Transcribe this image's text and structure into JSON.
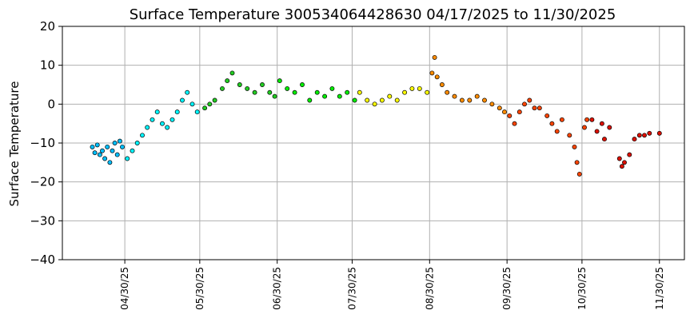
{
  "chart_data": {
    "type": "scatter",
    "title": "Surface Temperature 300534064428630  04/17/2025 to 11/30/2025",
    "xlabel": "",
    "ylabel": "Surface Temperature",
    "xlim": [
      "2025-04-05",
      "2025-12-10"
    ],
    "ylim": [
      -40,
      20
    ],
    "yticks": [
      -40,
      -30,
      -20,
      -10,
      0,
      10,
      20
    ],
    "xticks": [
      "04/30/25",
      "05/30/25",
      "06/30/25",
      "07/30/25",
      "08/30/25",
      "09/30/25",
      "10/30/25",
      "11/30/25"
    ],
    "xtick_dates": [
      "2025-04-30",
      "2025-05-30",
      "2025-06-30",
      "2025-07-30",
      "2025-08-30",
      "2025-09-30",
      "2025-10-30",
      "2025-11-30"
    ],
    "grid": true,
    "marker_edge_color": "#000000",
    "color_scheme": "rainbow by month: April blue, May cyan, June green, July lime, August yellow, September orange, October red-orange, November red",
    "series": [
      {
        "color": "#00bfff",
        "points": [
          [
            "2025-04-17",
            -11
          ],
          [
            "2025-04-18",
            -12.5
          ],
          [
            "2025-04-19",
            -10.5
          ],
          [
            "2025-04-20",
            -13
          ],
          [
            "2025-04-21",
            -12
          ],
          [
            "2025-04-22",
            -14
          ],
          [
            "2025-04-23",
            -11
          ],
          [
            "2025-04-24",
            -15
          ],
          [
            "2025-04-25",
            -12
          ],
          [
            "2025-04-26",
            -10
          ],
          [
            "2025-04-27",
            -13
          ],
          [
            "2025-04-28",
            -9.5
          ],
          [
            "2025-04-29",
            -11
          ]
        ]
      },
      {
        "color": "#00f5ff",
        "points": [
          [
            "2025-05-01",
            -14
          ],
          [
            "2025-05-03",
            -12
          ],
          [
            "2025-05-05",
            -10
          ],
          [
            "2025-05-07",
            -8
          ],
          [
            "2025-05-09",
            -6
          ],
          [
            "2025-05-11",
            -4
          ],
          [
            "2025-05-13",
            -2
          ],
          [
            "2025-05-15",
            -5
          ],
          [
            "2025-05-17",
            -6
          ],
          [
            "2025-05-19",
            -4
          ],
          [
            "2025-05-21",
            -2
          ],
          [
            "2025-05-23",
            1
          ],
          [
            "2025-05-25",
            3
          ],
          [
            "2025-05-27",
            0
          ],
          [
            "2025-05-29",
            -2
          ]
        ]
      },
      {
        "color": "#22cc22",
        "points": [
          [
            "2025-06-01",
            -1
          ],
          [
            "2025-06-03",
            0
          ],
          [
            "2025-06-05",
            1
          ],
          [
            "2025-06-08",
            4
          ],
          [
            "2025-06-10",
            6
          ],
          [
            "2025-06-12",
            8
          ],
          [
            "2025-06-15",
            5
          ],
          [
            "2025-06-18",
            4
          ],
          [
            "2025-06-21",
            3
          ],
          [
            "2025-06-24",
            5
          ],
          [
            "2025-06-27",
            3
          ],
          [
            "2025-06-29",
            2
          ]
        ]
      },
      {
        "color": "#00ee00",
        "points": [
          [
            "2025-07-01",
            6
          ],
          [
            "2025-07-04",
            4
          ],
          [
            "2025-07-07",
            3
          ],
          [
            "2025-07-10",
            5
          ],
          [
            "2025-07-13",
            1
          ],
          [
            "2025-07-16",
            3
          ],
          [
            "2025-07-19",
            2
          ],
          [
            "2025-07-22",
            4
          ],
          [
            "2025-07-25",
            2
          ],
          [
            "2025-07-28",
            3
          ],
          [
            "2025-07-31",
            1
          ]
        ]
      },
      {
        "color": "#ffff00",
        "points": [
          [
            "2025-08-02",
            3
          ],
          [
            "2025-08-05",
            1
          ],
          [
            "2025-08-08",
            0
          ],
          [
            "2025-08-11",
            1
          ],
          [
            "2025-08-14",
            2
          ],
          [
            "2025-08-17",
            1
          ],
          [
            "2025-08-20",
            3
          ],
          [
            "2025-08-23",
            4
          ],
          [
            "2025-08-26",
            4
          ],
          [
            "2025-08-29",
            3
          ]
        ]
      },
      {
        "color": "#ff8c00",
        "points": [
          [
            "2025-08-31",
            8
          ],
          [
            "2025-09-01",
            12
          ],
          [
            "2025-09-02",
            7
          ],
          [
            "2025-09-04",
            5
          ],
          [
            "2025-09-06",
            3
          ],
          [
            "2025-09-09",
            2
          ],
          [
            "2025-09-12",
            1
          ],
          [
            "2025-09-15",
            1
          ],
          [
            "2025-09-18",
            2
          ],
          [
            "2025-09-21",
            1
          ],
          [
            "2025-09-24",
            0
          ],
          [
            "2025-09-27",
            -1
          ],
          [
            "2025-09-29",
            -2
          ]
        ]
      },
      {
        "color": "#ff4500",
        "points": [
          [
            "2025-10-01",
            -3
          ],
          [
            "2025-10-03",
            -5
          ],
          [
            "2025-10-05",
            -2
          ],
          [
            "2025-10-07",
            0
          ],
          [
            "2025-10-09",
            1
          ],
          [
            "2025-10-11",
            -1
          ],
          [
            "2025-10-13",
            -1
          ],
          [
            "2025-10-16",
            -3
          ],
          [
            "2025-10-18",
            -5
          ],
          [
            "2025-10-20",
            -7
          ],
          [
            "2025-10-22",
            -4
          ],
          [
            "2025-10-25",
            -8
          ],
          [
            "2025-10-27",
            -11
          ],
          [
            "2025-10-28",
            -15
          ],
          [
            "2025-10-29",
            -18
          ],
          [
            "2025-10-31",
            -6
          ],
          [
            "2025-11-01",
            -4
          ]
        ]
      },
      {
        "color": "#dd1100",
        "points": [
          [
            "2025-11-03",
            -4
          ],
          [
            "2025-11-05",
            -7
          ],
          [
            "2025-11-07",
            -5
          ],
          [
            "2025-11-08",
            -9
          ],
          [
            "2025-11-10",
            -6
          ],
          [
            "2025-11-14",
            -14
          ],
          [
            "2025-11-15",
            -16
          ],
          [
            "2025-11-16",
            -15
          ],
          [
            "2025-11-18",
            -13
          ],
          [
            "2025-11-20",
            -9
          ],
          [
            "2025-11-22",
            -8
          ],
          [
            "2025-11-24",
            -8
          ],
          [
            "2025-11-26",
            -7.5
          ],
          [
            "2025-11-30",
            -7.5
          ]
        ]
      }
    ]
  }
}
